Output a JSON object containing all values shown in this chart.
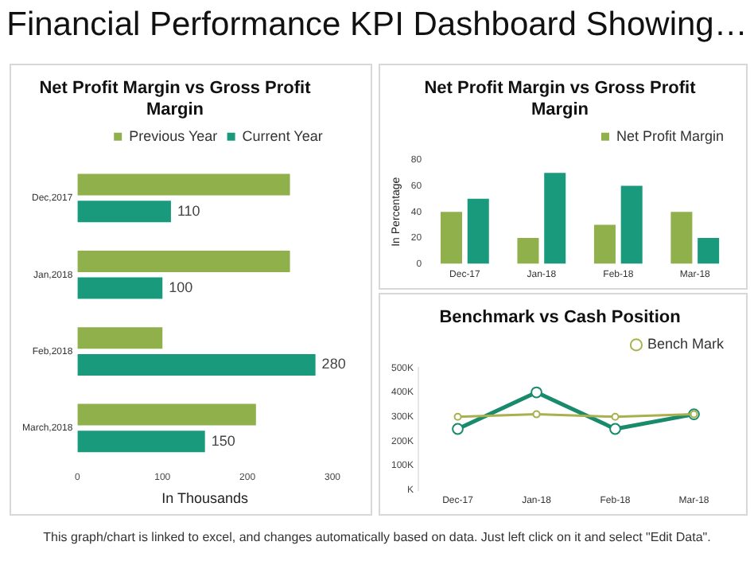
{
  "chart_data": [
    {
      "type": "bar",
      "orientation": "horizontal",
      "title": "Net Profit Margin vs Gross Profit Margin",
      "xlabel": "In Thousands",
      "annotations": [
        "Financial Performance KPI Dashboard Showing…"
      ],
      "categories": [
        "Dec,2017",
        "Jan,2018",
        "Feb,2018",
        "March,2018"
      ],
      "series": [
        {
          "name": "Previous Year",
          "color": "#8fb04a",
          "values": [
            250,
            250,
            100,
            210
          ]
        },
        {
          "name": "Current Year",
          "color": "#1a9a7c",
          "values": [
            110,
            100,
            280,
            150
          ],
          "value_labels": [
            "110",
            "100",
            "280",
            "150"
          ]
        }
      ],
      "xlim": [
        0,
        300
      ],
      "xticks": [
        0,
        100,
        200,
        300
      ],
      "grid": false,
      "legend": "top"
    },
    {
      "type": "bar",
      "title": "Net Profit Margin vs Gross Profit Margin",
      "ylabel": "In Percentage",
      "categories": [
        "Dec-17",
        "Jan-18",
        "Feb-18",
        "Mar-18"
      ],
      "series": [
        {
          "name": "Net Profit Margin",
          "color": "#8fb04a",
          "values": [
            40,
            20,
            30,
            40
          ]
        },
        {
          "color": "#1a9a7c",
          "values": [
            50,
            70,
            60,
            20
          ]
        }
      ],
      "ylim": [
        0,
        80
      ],
      "yticks": [
        0,
        20,
        40,
        60,
        80
      ],
      "grid": false,
      "legend": "top right"
    },
    {
      "type": "line",
      "title": "Benchmark vs Cash Position",
      "annotations": [
        "This graph/chart is linked to excel, and changes automatically based on data. Just left click on it and select \"Edit Data\"."
      ],
      "categories": [
        "Dec-17",
        "Jan-18",
        "Feb-18",
        "Mar-18"
      ],
      "series": [
        {
          "name": "Bench Mark",
          "color": "#a9b04e",
          "values": [
            300000,
            310000,
            300000,
            310000
          ]
        },
        {
          "color": "#1a8a6c",
          "values": [
            250000,
            400000,
            250000,
            310000
          ]
        }
      ],
      "ylim": [
        0,
        500000
      ],
      "yticks": [
        {
          "value": 0,
          "label": "K"
        },
        {
          "value": 100000,
          "label": "100K"
        },
        {
          "value": 200000,
          "label": "200K"
        },
        {
          "value": 300000,
          "label": "300K"
        },
        {
          "value": 400000,
          "label": "400K"
        },
        {
          "value": 500000,
          "label": "500K"
        }
      ],
      "grid": false,
      "legend": "top right",
      "marker": "circle",
      "line_style": "solid"
    }
  ]
}
